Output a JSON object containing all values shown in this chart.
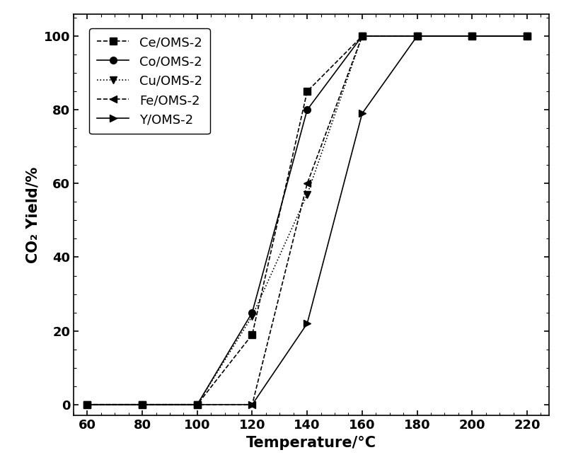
{
  "series": [
    {
      "label": "Ce/OMS-2",
      "linestyle": "--",
      "marker": "s",
      "x": [
        60,
        80,
        100,
        120,
        140,
        160,
        180,
        200,
        220
      ],
      "y": [
        0,
        0,
        0,
        19,
        85,
        100,
        100,
        100,
        100
      ]
    },
    {
      "label": "Co/OMS-2",
      "linestyle": "-",
      "marker": "o",
      "x": [
        60,
        80,
        100,
        120,
        140,
        160,
        180,
        200,
        220
      ],
      "y": [
        0,
        0,
        0,
        25,
        80,
        100,
        100,
        100,
        100
      ]
    },
    {
      "label": "Cu/OMS-2",
      "linestyle": ":",
      "marker": "v",
      "x": [
        60,
        80,
        100,
        120,
        140,
        160,
        180,
        200,
        220
      ],
      "y": [
        0,
        0,
        0,
        24,
        57,
        100,
        100,
        100,
        100
      ]
    },
    {
      "label": "Fe/OMS-2",
      "linestyle": "--",
      "marker": "<",
      "x": [
        60,
        80,
        100,
        120,
        140,
        160,
        180,
        200,
        220
      ],
      "y": [
        0,
        0,
        0,
        0,
        60,
        100,
        100,
        100,
        100
      ]
    },
    {
      "label": "Y/OMS-2",
      "linestyle": "-",
      "marker": ">",
      "x": [
        60,
        80,
        100,
        120,
        140,
        160,
        180,
        200,
        220
      ],
      "y": [
        0,
        0,
        0,
        0,
        22,
        79,
        100,
        100,
        100
      ]
    }
  ],
  "xlabel": "Temperature/°C",
  "ylabel": "CO₂ Yield/%",
  "xlim": [
    55,
    228
  ],
  "ylim": [
    -3,
    106
  ],
  "xticks": [
    60,
    80,
    100,
    120,
    140,
    160,
    180,
    200,
    220
  ],
  "yticks": [
    0,
    20,
    40,
    60,
    80,
    100
  ],
  "color": "black",
  "markersize": 7,
  "linewidth": 1.2,
  "fontsize_axis": 15,
  "fontsize_tick": 13,
  "fontsize_legend": 13
}
